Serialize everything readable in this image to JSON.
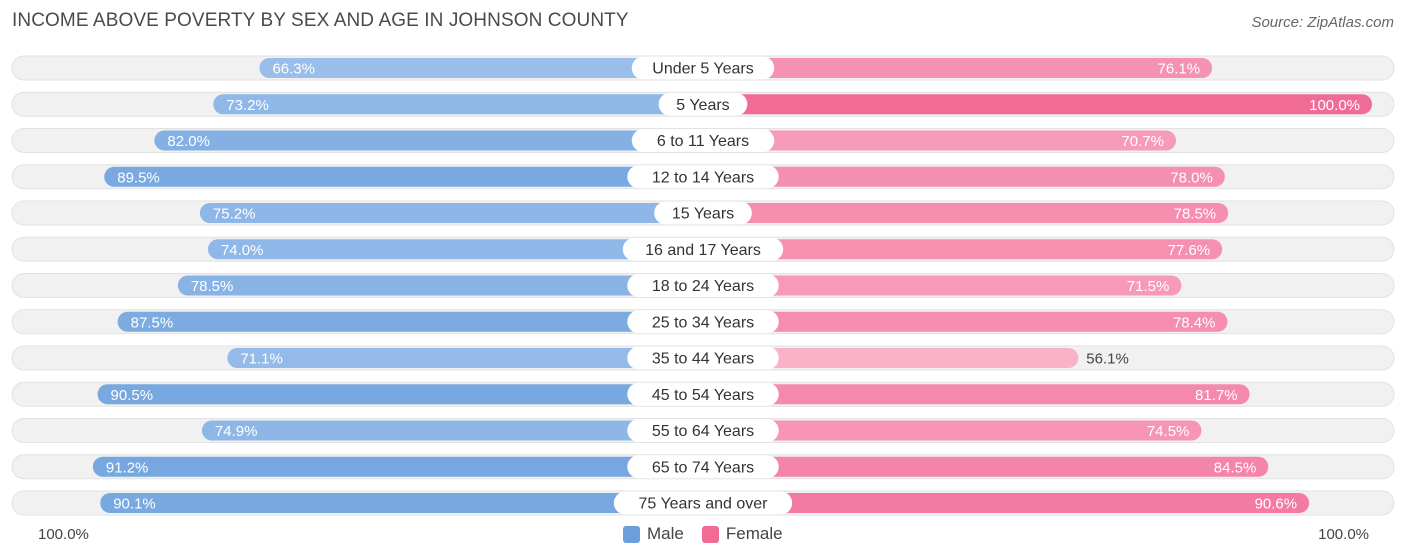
{
  "header": {
    "title": "INCOME ABOVE POVERTY BY SEX AND AGE IN JOHNSON COUNTY",
    "source": "Source: ZipAtlas.com"
  },
  "legend": {
    "male": "Male",
    "female": "Female"
  },
  "axis": {
    "left_label": "100.0%",
    "right_label": "100.0%"
  },
  "colors": {
    "male_light": "#a9c8ee",
    "male_dark": "#6a9fdc",
    "female_light": "#f9b3c9",
    "female_dark": "#f16b97",
    "row_bg": "#f1f1f1"
  },
  "chart_data": {
    "type": "bar",
    "orientation": "horizontal-diverging",
    "title": "INCOME ABOVE POVERTY BY SEX AND AGE IN JOHNSON COUNTY",
    "xlim": [
      0,
      100
    ],
    "categories": [
      "Under 5 Years",
      "5 Years",
      "6 to 11 Years",
      "12 to 14 Years",
      "15 Years",
      "16 and 17 Years",
      "18 to 24 Years",
      "25 to 34 Years",
      "35 to 44 Years",
      "45 to 54 Years",
      "55 to 64 Years",
      "65 to 74 Years",
      "75 Years and over"
    ],
    "series": [
      {
        "name": "Male",
        "values": [
          66.3,
          73.2,
          82.0,
          89.5,
          75.2,
          74.0,
          78.5,
          87.5,
          71.1,
          90.5,
          74.9,
          91.2,
          90.1
        ],
        "labels": [
          "66.3%",
          "73.2%",
          "82.0%",
          "89.5%",
          "75.2%",
          "74.0%",
          "78.5%",
          "87.5%",
          "71.1%",
          "90.5%",
          "74.9%",
          "91.2%",
          "90.1%"
        ]
      },
      {
        "name": "Female",
        "values": [
          76.1,
          100.0,
          70.7,
          78.0,
          78.5,
          77.6,
          71.5,
          78.4,
          56.1,
          81.7,
          74.5,
          84.5,
          90.6
        ],
        "labels": [
          "76.1%",
          "100.0%",
          "70.7%",
          "78.0%",
          "78.5%",
          "77.6%",
          "71.5%",
          "78.4%",
          "56.1%",
          "81.7%",
          "74.5%",
          "84.5%",
          "90.6%"
        ]
      }
    ]
  }
}
